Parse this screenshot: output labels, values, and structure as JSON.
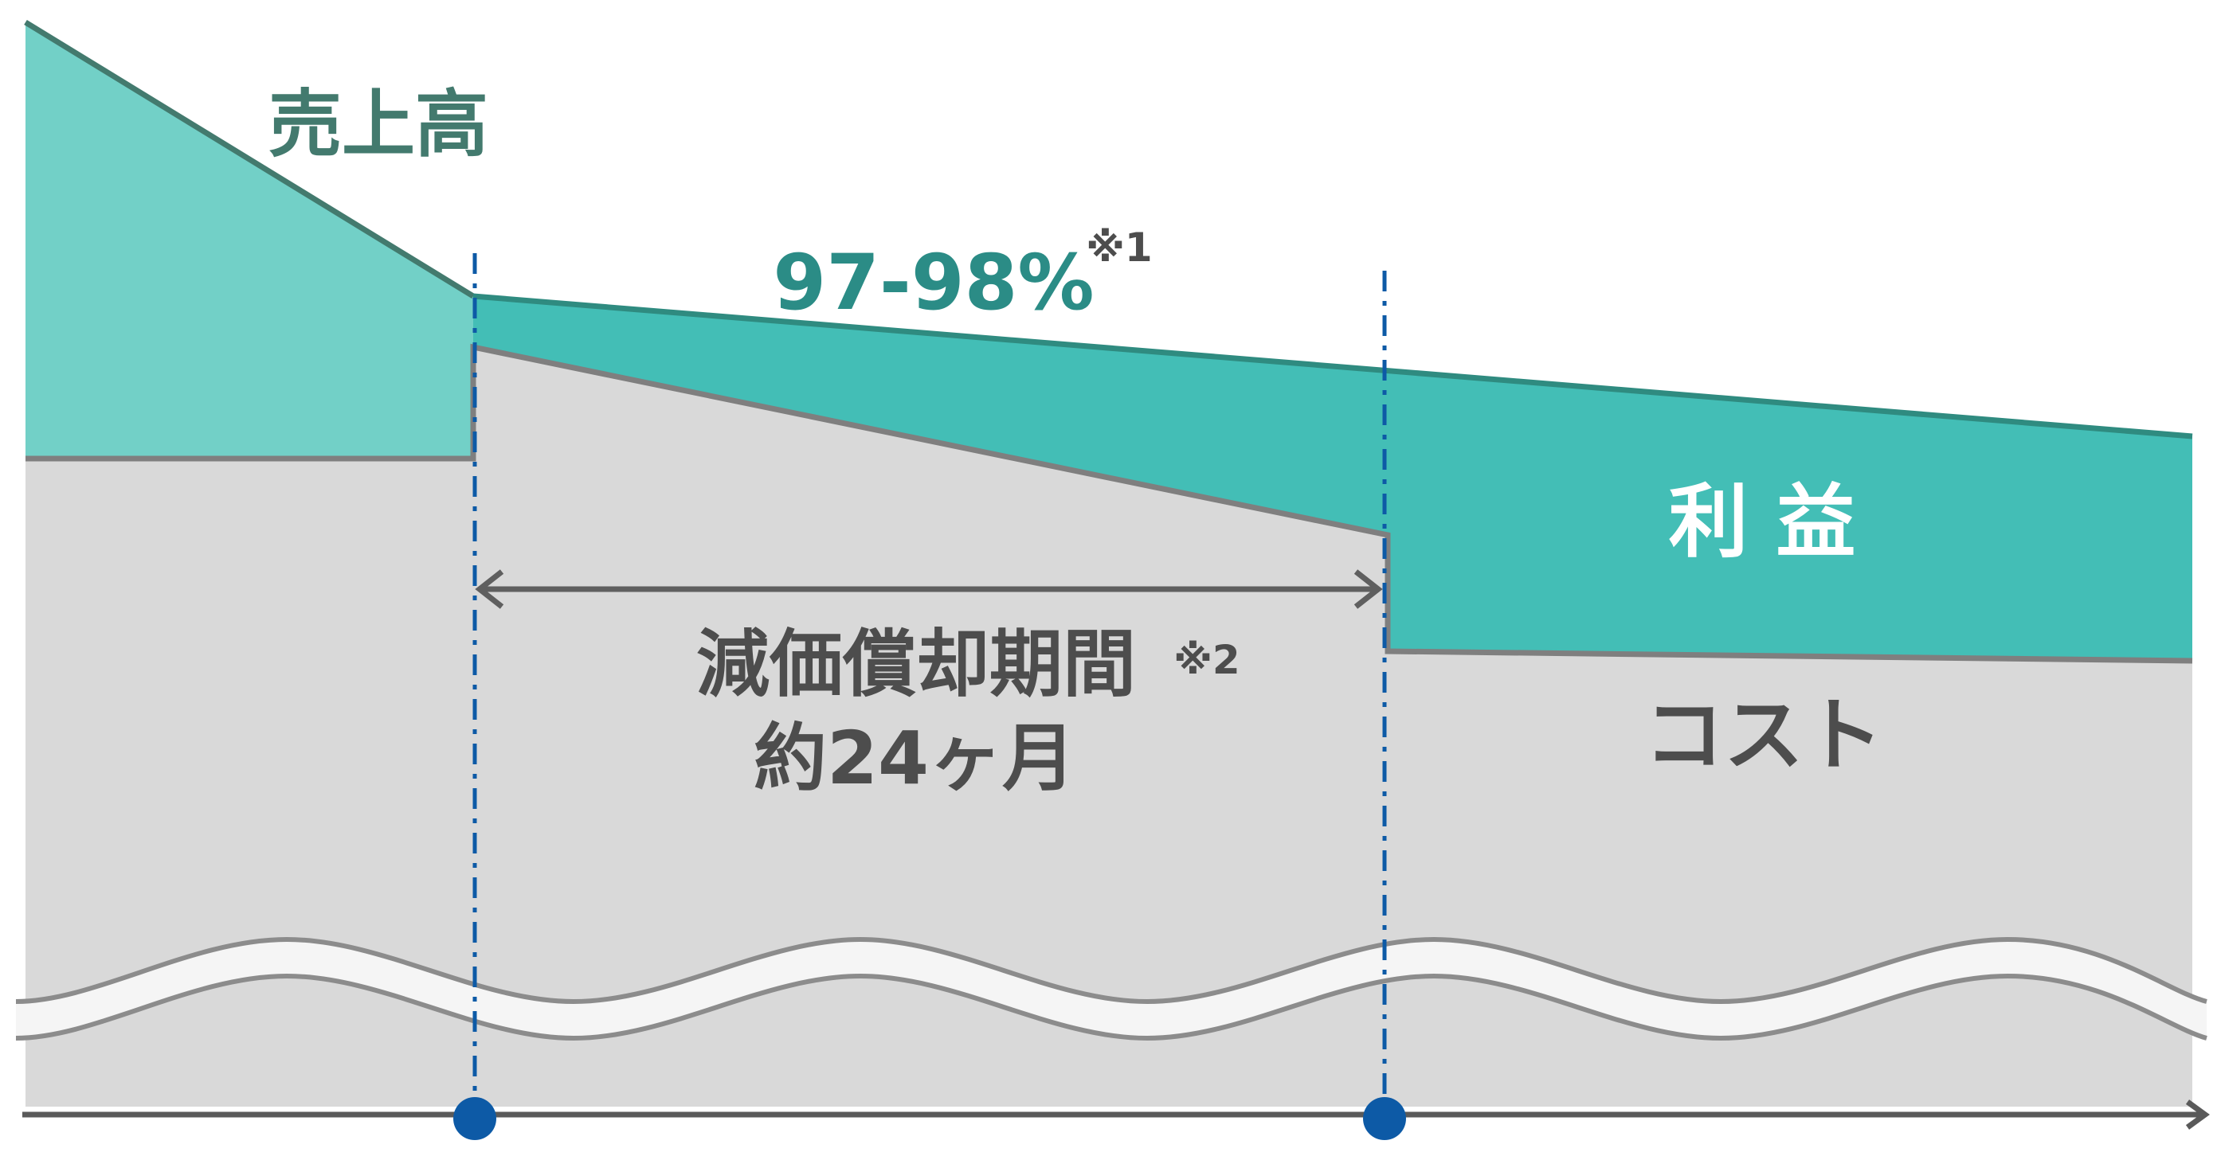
{
  "labels": {
    "sales": "売上高",
    "ratio": "97-98%",
    "note1": "※1",
    "profit": "利 益",
    "period_line1": "減価償却期間",
    "note2": "※2",
    "period_line2": "約24ヶ月",
    "cost": "コスト"
  },
  "colors": {
    "sales_fill": "#72d0c7",
    "sales_line": "#437a6e",
    "profit_fill": "#43beb6",
    "profit_line": "#2f8b80",
    "cost_fill": "#d9d9d9",
    "cost_line": "#7f7f7f",
    "marker": "#0d5aa6",
    "sales_label": "#437a6e",
    "ratio_label": "#2b8c86",
    "dark_label": "#4d4d4d",
    "white_label": "#ffffff"
  }
}
